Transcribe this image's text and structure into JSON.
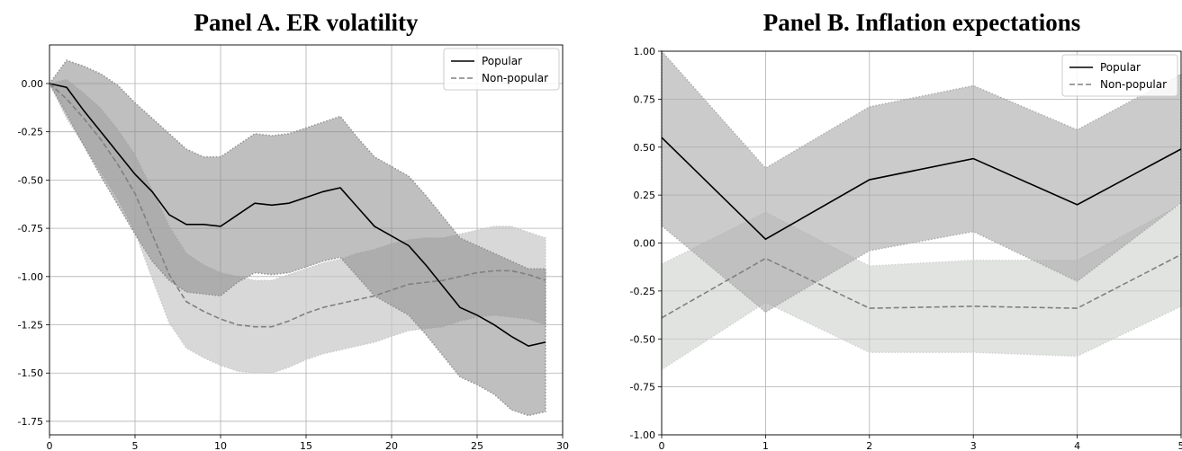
{
  "chart_data": [
    {
      "type": "line",
      "title": "Panel A. ER volatility",
      "xlabel": "",
      "ylabel": "",
      "xlim": [
        0,
        30
      ],
      "ylim": [
        -1.82,
        0.2
      ],
      "xticks": [
        0,
        5,
        10,
        15,
        20,
        25,
        30
      ],
      "yticks": [
        0.0,
        -0.25,
        -0.5,
        -0.75,
        -1.0,
        -1.25,
        -1.5,
        -1.75
      ],
      "ytick_labels": [
        "0.00",
        "-0.25",
        "-0.50",
        "-0.75",
        "-1.00",
        "-1.25",
        "-1.50",
        "-1.75"
      ],
      "grid": true,
      "legend_position": "top-right",
      "x": [
        0,
        1,
        2,
        3,
        4,
        5,
        6,
        7,
        8,
        9,
        10,
        11,
        12,
        13,
        14,
        15,
        16,
        17,
        18,
        19,
        20,
        21,
        22,
        23,
        24,
        25,
        26,
        27,
        28,
        29
      ],
      "series": [
        {
          "name": "Popular",
          "style": "solid",
          "color": "#000000",
          "band_color": "#8a8a8a",
          "band_opacity": 0.55,
          "values": [
            0.0,
            -0.02,
            -0.14,
            -0.25,
            -0.36,
            -0.47,
            -0.56,
            -0.68,
            -0.73,
            -0.73,
            -0.74,
            -0.68,
            -0.62,
            -0.63,
            -0.62,
            -0.59,
            -0.56,
            -0.54,
            -0.64,
            -0.74,
            -0.79,
            -0.84,
            -0.94,
            -1.05,
            -1.16,
            -1.2,
            -1.25,
            -1.31,
            -1.36,
            -1.34
          ],
          "upper": [
            0.0,
            0.12,
            0.09,
            0.05,
            -0.01,
            -0.1,
            -0.18,
            -0.26,
            -0.34,
            -0.38,
            -0.38,
            -0.32,
            -0.26,
            -0.27,
            -0.26,
            -0.23,
            -0.2,
            -0.17,
            -0.28,
            -0.38,
            -0.43,
            -0.48,
            -0.58,
            -0.69,
            -0.8,
            -0.84,
            -0.88,
            -0.92,
            -0.96,
            -0.96
          ],
          "lower": [
            0.0,
            -0.16,
            -0.32,
            -0.48,
            -0.63,
            -0.78,
            -0.92,
            -1.02,
            -1.08,
            -1.09,
            -1.1,
            -1.03,
            -0.98,
            -0.99,
            -0.98,
            -0.95,
            -0.92,
            -0.9,
            -1.0,
            -1.1,
            -1.15,
            -1.2,
            -1.3,
            -1.41,
            -1.52,
            -1.56,
            -1.61,
            -1.69,
            -1.72,
            -1.7
          ]
        },
        {
          "name": "Non-popular",
          "style": "dashed",
          "color": "#808080",
          "band_color": "#c8c8c8",
          "band_opacity": 0.7,
          "values": [
            0.0,
            -0.08,
            -0.18,
            -0.29,
            -0.42,
            -0.57,
            -0.78,
            -0.99,
            -1.13,
            -1.18,
            -1.22,
            -1.25,
            -1.26,
            -1.26,
            -1.23,
            -1.19,
            -1.16,
            -1.14,
            -1.12,
            -1.1,
            -1.07,
            -1.04,
            -1.03,
            -1.02,
            -1.0,
            -0.98,
            -0.97,
            -0.97,
            -0.99,
            -1.02
          ],
          "upper": [
            0.0,
            0.02,
            -0.05,
            -0.13,
            -0.24,
            -0.37,
            -0.55,
            -0.74,
            -0.88,
            -0.94,
            -0.98,
            -1.0,
            -1.02,
            -1.02,
            -0.99,
            -0.96,
            -0.93,
            -0.91,
            -0.88,
            -0.86,
            -0.83,
            -0.81,
            -0.8,
            -0.8,
            -0.78,
            -0.76,
            -0.74,
            -0.74,
            -0.77,
            -0.8
          ],
          "lower": [
            0.0,
            -0.18,
            -0.32,
            -0.46,
            -0.6,
            -0.77,
            -1.01,
            -1.24,
            -1.37,
            -1.42,
            -1.46,
            -1.49,
            -1.5,
            -1.5,
            -1.47,
            -1.43,
            -1.4,
            -1.38,
            -1.36,
            -1.34,
            -1.31,
            -1.28,
            -1.27,
            -1.26,
            -1.23,
            -1.21,
            -1.2,
            -1.21,
            -1.22,
            -1.25
          ]
        }
      ]
    },
    {
      "type": "line",
      "title": "Panel B. Inflation expectations",
      "xlabel": "",
      "ylabel": "",
      "xlim": [
        0,
        5
      ],
      "ylim": [
        -1.0,
        1.0
      ],
      "xticks": [
        0,
        1,
        2,
        3,
        4,
        5
      ],
      "yticks": [
        1.0,
        0.75,
        0.5,
        0.25,
        0.0,
        -0.25,
        -0.5,
        -0.75,
        -1.0
      ],
      "ytick_labels": [
        "1.00",
        "0.75",
        "0.50",
        "0.25",
        "0.00",
        "-0.25",
        "-0.50",
        "-0.75",
        "-1.00"
      ],
      "grid": true,
      "legend_position": "top-right",
      "x": [
        0,
        1,
        2,
        3,
        4,
        5
      ],
      "series": [
        {
          "name": "Popular",
          "style": "solid",
          "color": "#000000",
          "band_color": "#a8a8a8",
          "band_opacity": 0.6,
          "values": [
            0.55,
            0.02,
            0.33,
            0.44,
            0.2,
            0.49
          ],
          "upper": [
            1.0,
            0.39,
            0.71,
            0.82,
            0.59,
            0.88
          ],
          "lower": [
            0.09,
            -0.36,
            -0.04,
            0.06,
            -0.2,
            0.21
          ]
        },
        {
          "name": "Non-popular",
          "style": "dashed",
          "color": "#808080",
          "band_color": "#cdd0cd",
          "band_opacity": 0.6,
          "values": [
            -0.39,
            -0.08,
            -0.34,
            -0.33,
            -0.34,
            -0.06
          ],
          "upper": [
            -0.11,
            0.16,
            -0.12,
            -0.09,
            -0.09,
            0.2
          ],
          "lower": [
            -0.66,
            -0.31,
            -0.57,
            -0.57,
            -0.59,
            -0.33
          ]
        }
      ]
    }
  ]
}
